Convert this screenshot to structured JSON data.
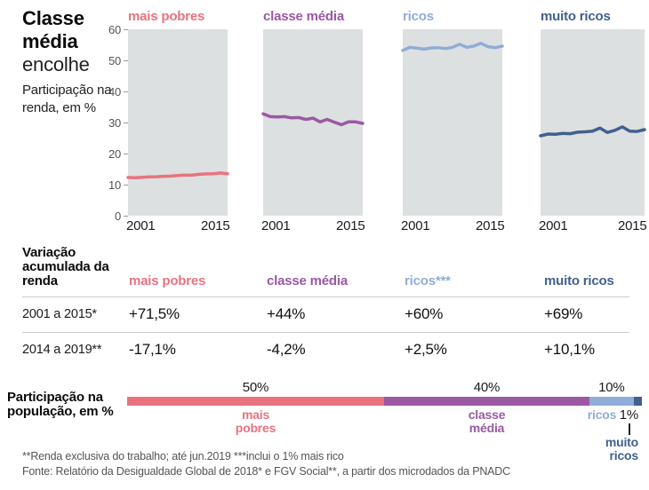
{
  "header": {
    "title_line1": "Classe",
    "title_line2": "média",
    "title_line3": "encolhe",
    "subtitle": "Participação na renda, em %"
  },
  "colors": {
    "mais_pobres": "#e8737f",
    "classe_media": "#9b58a5",
    "ricos": "#90acd8",
    "muito_ricos": "#41608f",
    "plot_background": "#dde0e0",
    "rule": "#cccccc",
    "axis_text": "#555555"
  },
  "chart_data": {
    "type": "line",
    "title": "Participação na renda, em %",
    "years_range": [
      2001,
      2015
    ],
    "x_labels": [
      "2001",
      "2015"
    ],
    "ylim": [
      0,
      60
    ],
    "yticks": [
      0,
      10,
      20,
      30,
      40,
      50,
      60
    ],
    "grid": false,
    "panels": [
      {
        "label": "mais pobres",
        "color": "#e8737f",
        "values": [
          12.3,
          12.2,
          12.35,
          12.5,
          12.55,
          12.7,
          12.75,
          12.9,
          13.1,
          13.05,
          13.3,
          13.45,
          13.5,
          13.75,
          13.5
        ]
      },
      {
        "label": "classe média",
        "color": "#9b58a5",
        "values": [
          32.8,
          31.9,
          31.8,
          31.9,
          31.5,
          31.6,
          31.0,
          31.4,
          30.2,
          31.0,
          30.1,
          29.3,
          30.2,
          30.2,
          29.7
        ]
      },
      {
        "label": "ricos",
        "color": "#90acd8",
        "values": [
          53.2,
          54.2,
          53.9,
          53.6,
          54.0,
          54.1,
          53.8,
          54.2,
          55.2,
          54.2,
          54.6,
          55.5,
          54.4,
          54.1,
          54.6
        ]
      },
      {
        "label": "muito ricos",
        "color": "#41608f",
        "values": [
          25.7,
          26.3,
          26.2,
          26.5,
          26.4,
          26.9,
          27.0,
          27.2,
          28.2,
          26.8,
          27.5,
          28.6,
          27.2,
          27.1,
          27.7
        ]
      }
    ]
  },
  "table": {
    "title": "Variação acumulada da renda",
    "columns": [
      {
        "label": "mais pobres",
        "color": "#e8737f"
      },
      {
        "label": "classe média",
        "color": "#9b58a5"
      },
      {
        "label": "ricos***",
        "color": "#90acd8"
      },
      {
        "label": "muito ricos",
        "color": "#41608f"
      }
    ],
    "rows": [
      {
        "label": "2001 a 2015*",
        "values": [
          "+71,5%",
          "+44%",
          "+60%",
          "+69%"
        ]
      },
      {
        "label": "2014 a 2019**",
        "values": [
          "-17,1%",
          "-4,2%",
          "+2,5%",
          "+10,1%"
        ]
      }
    ]
  },
  "population": {
    "title": "Participação na população, em %",
    "segments": [
      {
        "label": "mais pobres",
        "pct_label": "50%",
        "value": 50,
        "color": "#e8737f"
      },
      {
        "label": "classe média",
        "pct_label": "40%",
        "value": 40,
        "color": "#9b58a5"
      },
      {
        "label": "ricos",
        "pct_label": "10%",
        "value": 10,
        "color": "#90acd8"
      },
      {
        "label": "muito ricos",
        "pct_label": "1%",
        "value": 1,
        "color": "#41608f"
      }
    ]
  },
  "footnotes": {
    "line1": "**Renda exclusiva do trabalho; até jun.2019 ***inclui o 1% mais rico",
    "line2": "Fonte: Relatório da Desigualdade Global de 2018* e FGV Social**, a partir dos microdados da PNADC"
  }
}
